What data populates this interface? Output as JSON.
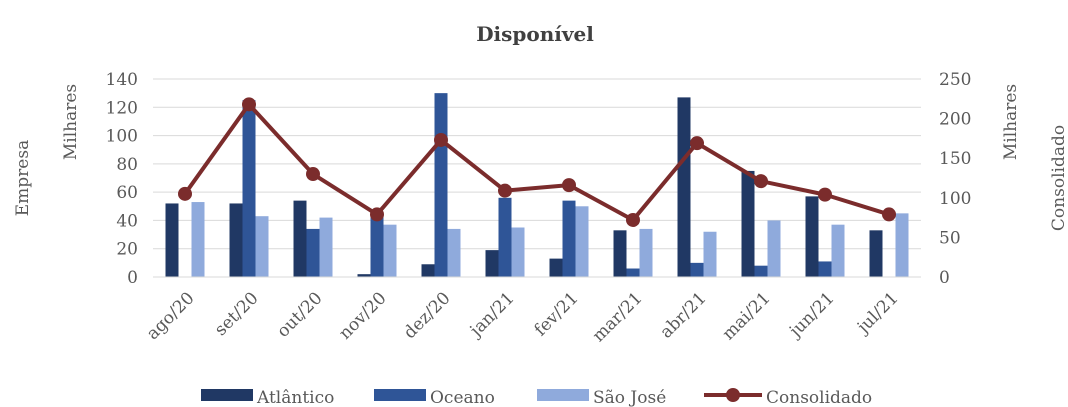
{
  "chart_data": {
    "type": "bar",
    "title": "Disponível",
    "categories": [
      "ago/20",
      "set/20",
      "out/20",
      "nov/20",
      "dez/20",
      "jan/21",
      "fev/21",
      "mar/21",
      "abr/21",
      "mai/21",
      "jun/21",
      "jul/21"
    ],
    "y_left": {
      "label": "Empresa",
      "units": "Milhares",
      "ticks": [
        "0",
        "20",
        "40",
        "60",
        "80",
        "100",
        "120",
        "140"
      ],
      "ylim": [
        0,
        140
      ]
    },
    "y_right": {
      "label": "Consolidado",
      "units": "Milhares",
      "ticks": [
        "0",
        "50",
        "100",
        "150",
        "200",
        "250"
      ],
      "ylim": [
        0,
        250
      ]
    },
    "series": [
      {
        "name": "Atlântico",
        "type": "bar",
        "axis": "left",
        "color": "#203864",
        "values": [
          52,
          52,
          54,
          2,
          9,
          19,
          13,
          33,
          127,
          75,
          57,
          33
        ]
      },
      {
        "name": "Oceano",
        "type": "bar",
        "axis": "left",
        "color": "#2F5597",
        "values": [
          0,
          125,
          34,
          44,
          130,
          56,
          54,
          6,
          10,
          8,
          11,
          0
        ]
      },
      {
        "name": "São  José",
        "type": "bar",
        "axis": "left",
        "color": "#8FAADC",
        "values": [
          53,
          43,
          42,
          37,
          34,
          35,
          50,
          34,
          32,
          40,
          37,
          45
        ]
      },
      {
        "name": "Consolidado",
        "type": "line",
        "axis": "right",
        "color": "#7B2C2C",
        "values": [
          105,
          218,
          130,
          79,
          173,
          109,
          116,
          72,
          169,
          121,
          104,
          79
        ]
      }
    ],
    "grid": true,
    "legend_position": "bottom"
  }
}
